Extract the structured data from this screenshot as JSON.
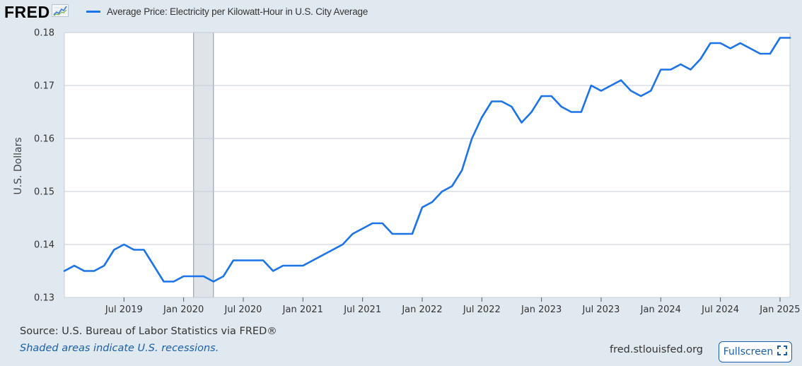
{
  "logo": {
    "text": "FRED"
  },
  "colors": {
    "series": "#1a73e8",
    "recession": "#dfe4ea",
    "page": "#e1e9f0",
    "link": "#1a5ea8"
  },
  "footer": {
    "source": "Source: U.S. Bureau of Labor Statistics via FRED®",
    "note": "Shaded areas indicate U.S. recessions.",
    "site": "fred.stlouisfed.org",
    "fullscreen_label": "Fullscreen"
  },
  "icons": {
    "logo": "chart-line-icon",
    "fullscreen": "expand-icon"
  },
  "chart_data": {
    "type": "line",
    "title": "",
    "xlabel": "",
    "ylabel": "U.S. Dollars",
    "ylim": [
      0.13,
      0.18
    ],
    "xlim": [
      "2019-01",
      "2025-02"
    ],
    "grid": true,
    "legend_position": "top-left",
    "y_ticks": [
      "0.13",
      "0.14",
      "0.15",
      "0.16",
      "0.17",
      "0.18"
    ],
    "x_ticks": [
      {
        "label": "Jul 2019",
        "date": "2019-07"
      },
      {
        "label": "Jan 2020",
        "date": "2020-01"
      },
      {
        "label": "Jul 2020",
        "date": "2020-07"
      },
      {
        "label": "Jan 2021",
        "date": "2021-01"
      },
      {
        "label": "Jul 2021",
        "date": "2021-07"
      },
      {
        "label": "Jan 2022",
        "date": "2022-01"
      },
      {
        "label": "Jul 2022",
        "date": "2022-07"
      },
      {
        "label": "Jan 2023",
        "date": "2023-01"
      },
      {
        "label": "Jul 2023",
        "date": "2023-07"
      },
      {
        "label": "Jan 2024",
        "date": "2024-01"
      },
      {
        "label": "Jul 2024",
        "date": "2024-07"
      },
      {
        "label": "Jan 2025",
        "date": "2025-01"
      }
    ],
    "recessions": [
      {
        "start": "2020-02",
        "end": "2020-04"
      }
    ],
    "series": [
      {
        "name": "Average Price: Electricity per Kilowatt-Hour in U.S. City Average",
        "x": [
          "2019-01",
          "2019-02",
          "2019-03",
          "2019-04",
          "2019-05",
          "2019-06",
          "2019-07",
          "2019-08",
          "2019-09",
          "2019-10",
          "2019-11",
          "2019-12",
          "2020-01",
          "2020-02",
          "2020-03",
          "2020-04",
          "2020-05",
          "2020-06",
          "2020-07",
          "2020-08",
          "2020-09",
          "2020-10",
          "2020-11",
          "2020-12",
          "2021-01",
          "2021-02",
          "2021-03",
          "2021-04",
          "2021-05",
          "2021-06",
          "2021-07",
          "2021-08",
          "2021-09",
          "2021-10",
          "2021-11",
          "2021-12",
          "2022-01",
          "2022-02",
          "2022-03",
          "2022-04",
          "2022-05",
          "2022-06",
          "2022-07",
          "2022-08",
          "2022-09",
          "2022-10",
          "2022-11",
          "2022-12",
          "2023-01",
          "2023-02",
          "2023-03",
          "2023-04",
          "2023-05",
          "2023-06",
          "2023-07",
          "2023-08",
          "2023-09",
          "2023-10",
          "2023-11",
          "2023-12",
          "2024-01",
          "2024-02",
          "2024-03",
          "2024-04",
          "2024-05",
          "2024-06",
          "2024-07",
          "2024-08",
          "2024-09",
          "2024-10",
          "2024-11",
          "2024-12",
          "2025-01",
          "2025-02"
        ],
        "values": [
          0.135,
          0.136,
          0.135,
          0.135,
          0.136,
          0.139,
          0.14,
          0.139,
          0.139,
          0.136,
          0.133,
          0.133,
          0.134,
          0.134,
          0.134,
          0.133,
          0.134,
          0.137,
          0.137,
          0.137,
          0.137,
          0.135,
          0.136,
          0.136,
          0.136,
          0.137,
          0.138,
          0.139,
          0.14,
          0.142,
          0.143,
          0.144,
          0.144,
          0.142,
          0.142,
          0.142,
          0.147,
          0.148,
          0.15,
          0.151,
          0.154,
          0.16,
          0.164,
          0.167,
          0.167,
          0.166,
          0.163,
          0.165,
          0.168,
          0.168,
          0.166,
          0.165,
          0.165,
          0.17,
          0.169,
          0.17,
          0.171,
          0.169,
          0.168,
          0.169,
          0.173,
          0.173,
          0.174,
          0.173,
          0.175,
          0.178,
          0.178,
          0.177,
          0.178,
          0.177,
          0.176,
          0.176,
          0.179,
          0.179
        ]
      }
    ]
  }
}
